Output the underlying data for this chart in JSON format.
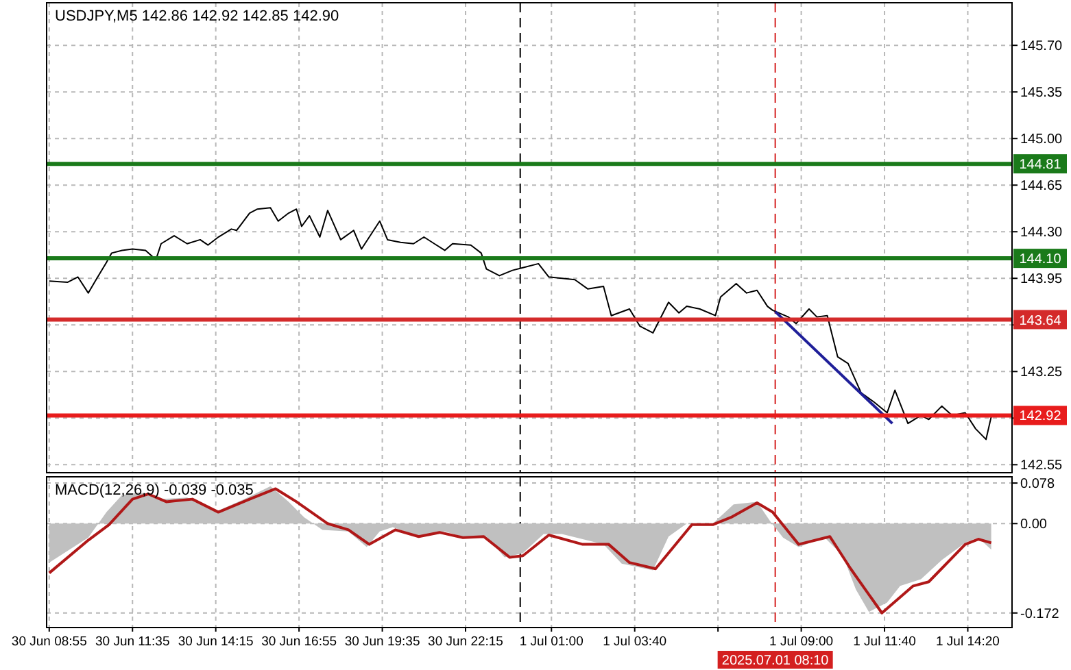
{
  "chart_data": [
    {
      "type": "line",
      "title": "USDJPY,M5 142.86 142.92 142.85 142.90",
      "xlim": [
        "2025-06-30T08:50",
        "2025-07-01T15:45"
      ],
      "xticks": [
        {
          "value": "2025-06-30T08:55",
          "label": null
        },
        {
          "value": "2025-06-30T11:35",
          "label": null
        },
        {
          "value": "2025-06-30T14:15",
          "label": null
        },
        {
          "value": "2025-06-30T16:55",
          "label": null
        },
        {
          "value": "2025-06-30T19:35",
          "label": null
        },
        {
          "value": "2025-06-30T22:15",
          "label": null
        },
        {
          "value": "2025-07-01T01:00",
          "label": null
        },
        {
          "value": "2025-07-01T03:40",
          "label": null
        },
        {
          "value": "2025-07-01T06:20",
          "label": null
        },
        {
          "value": "2025-07-01T09:00",
          "label": null
        },
        {
          "value": "2025-07-01T11:40",
          "label": null
        },
        {
          "value": "2025-07-01T14:20",
          "label": null
        }
      ],
      "ylim": [
        142.49,
        146.02
      ],
      "yticks": [
        {
          "value": 145.7,
          "label": "145.70"
        },
        145.35,
        {
          "value": 145,
          "label": "145.00"
        },
        144.65,
        {
          "value": 144.3,
          "label": "144.30"
        },
        143.95,
        {
          "value": 143.6,
          "label": null
        },
        143.25,
        {
          "value": 142.9,
          "label": null
        },
        142.55
      ],
      "tick_labels": "y",
      "grid": true,
      "series": [
        {
          "color": "#000000",
          "x": [
            "2025-06-30T08:55",
            "2025-06-30T09:30",
            "2025-06-30T09:50",
            "2025-06-30T10:10",
            "2025-06-30T10:25",
            "2025-06-30T10:45",
            "2025-06-30T10:55",
            "2025-06-30T11:15",
            "2025-06-30T11:35",
            "2025-06-30T12:00",
            "2025-06-30T12:20",
            "2025-06-30T12:30",
            "2025-06-30T12:55",
            "2025-06-30T13:20",
            "2025-06-30T13:45",
            "2025-06-30T14:00",
            "2025-06-30T14:20",
            "2025-06-30T14:45",
            "2025-06-30T14:55",
            "2025-06-30T15:20",
            "2025-06-30T15:35",
            "2025-06-30T16:00",
            "2025-06-30T16:15",
            "2025-06-30T16:35",
            "2025-06-30T16:50",
            "2025-06-30T17:00",
            "2025-06-30T17:15",
            "2025-06-30T17:35",
            "2025-06-30T17:50",
            "2025-06-30T18:15",
            "2025-06-30T18:40",
            "2025-06-30T18:55",
            "2025-06-30T19:30",
            "2025-06-30T19:45",
            "2025-06-30T20:10",
            "2025-06-30T20:35",
            "2025-06-30T20:55",
            "2025-06-30T21:15",
            "2025-06-30T21:35",
            "2025-06-30T21:50",
            "2025-06-30T22:25",
            "2025-06-30T22:45",
            "2025-06-30T22:55",
            "2025-06-30T23:20",
            "2025-06-30T23:45",
            "2025-07-01T00:05",
            "2025-07-01T00:35",
            "2025-07-01T00:55",
            "2025-07-01T01:45",
            "2025-07-01T02:10",
            "2025-07-01T02:40",
            "2025-07-01T02:55",
            "2025-07-01T03:30",
            "2025-07-01T03:50",
            "2025-07-01T04:15",
            "2025-07-01T04:45",
            "2025-07-01T05:05",
            "2025-07-01T05:20",
            "2025-07-01T05:45",
            "2025-07-01T06:15",
            "2025-07-01T06:25",
            "2025-07-01T06:55",
            "2025-07-01T07:15",
            "2025-07-01T07:35",
            "2025-07-01T07:55",
            "2025-07-01T08:05",
            "2025-07-01T08:35",
            "2025-07-01T08:50",
            "2025-07-01T09:15",
            "2025-07-01T09:30",
            "2025-07-01T09:50",
            "2025-07-01T10:10",
            "2025-07-01T10:30",
            "2025-07-01T10:55",
            "2025-07-01T11:20",
            "2025-07-01T11:45",
            "2025-07-01T12:00",
            "2025-07-01T12:25",
            "2025-07-01T12:50",
            "2025-07-01T13:05",
            "2025-07-01T13:30",
            "2025-07-01T13:50",
            "2025-07-01T14:15",
            "2025-07-01T14:35",
            "2025-07-01T14:55",
            "2025-07-01T15:05"
          ],
          "values": [
            143.93,
            143.92,
            143.96,
            143.84,
            143.94,
            144.07,
            144.14,
            144.16,
            144.17,
            144.16,
            144.09,
            144.21,
            144.27,
            144.21,
            144.24,
            144.2,
            144.26,
            144.32,
            144.31,
            144.44,
            144.47,
            144.48,
            144.38,
            144.44,
            144.47,
            144.34,
            144.42,
            144.26,
            144.46,
            144.24,
            144.31,
            144.17,
            144.38,
            144.24,
            144.22,
            144.21,
            144.26,
            144.21,
            144.16,
            144.21,
            144.2,
            144.14,
            144.02,
            143.97,
            144.01,
            144.03,
            144.06,
            143.96,
            143.94,
            143.87,
            143.89,
            143.67,
            143.72,
            143.59,
            143.54,
            143.77,
            143.69,
            143.74,
            143.72,
            143.67,
            143.81,
            143.91,
            143.84,
            143.86,
            143.74,
            143.71,
            143.66,
            143.61,
            143.72,
            143.66,
            143.67,
            143.36,
            143.31,
            143.09,
            143.02,
            142.94,
            143.11,
            142.86,
            142.92,
            142.89,
            142.99,
            142.92,
            142.94,
            142.82,
            142.74,
            142.91
          ]
        },
        {
          "color": "#1f1f99",
          "x": [
            "2025-07-01T08:10",
            "2025-07-01T11:55"
          ],
          "values": [
            143.7,
            142.86
          ]
        }
      ],
      "ref_lines": [
        {
          "axis": "y",
          "value": 144.81,
          "label": "144.81",
          "color": "#1a7a1a",
          "line_style": "solid"
        },
        {
          "axis": "y",
          "value": 144.1,
          "label": "144.10",
          "color": "#1a7a1a",
          "line_style": "solid"
        },
        {
          "axis": "y",
          "value": 143.64,
          "label": "143.64",
          "color": "#d42a2a",
          "line_style": "solid"
        },
        {
          "axis": "y",
          "value": 142.92,
          "label": "142.92",
          "color": "#e81c1c",
          "line_style": "solid"
        },
        {
          "axis": "x",
          "value": "2025-07-01T00:00",
          "color": "#000000",
          "line_style": "dashed"
        },
        {
          "axis": "x",
          "value": "2025-07-01T08:10",
          "color": "#d42020",
          "line_style": "dashed"
        }
      ]
    },
    {
      "type": "line",
      "title": "MACD(12,26,9) -0.039 -0.035",
      "xlim": [
        "2025-06-30T08:50",
        "2025-07-01T15:45"
      ],
      "xticks": [
        {
          "value": "2025-06-30T08:55",
          "label": "30 Jun 08:55"
        },
        {
          "value": "2025-06-30T11:35",
          "label": "30 Jun 11:35"
        },
        {
          "value": "2025-06-30T14:15",
          "label": "30 Jun 14:15"
        },
        {
          "value": "2025-06-30T16:55",
          "label": "30 Jun 16:55"
        },
        {
          "value": "2025-06-30T19:35",
          "label": "30 Jun 19:35"
        },
        {
          "value": "2025-06-30T22:15",
          "label": "30 Jun 22:15"
        },
        {
          "value": "2025-07-01T01:00",
          "label": "1 Jul 01:00"
        },
        {
          "value": "2025-07-01T03:40",
          "label": "1 Jul 03:40"
        },
        {
          "value": "2025-07-01T06:20",
          "label": null
        },
        {
          "value": "2025-07-01T09:00",
          "label": "1 Jul 09:00"
        },
        {
          "value": "2025-07-01T11:40",
          "label": "1 Jul 11:40"
        },
        {
          "value": "2025-07-01T14:20",
          "label": "1 Jul 14:20"
        }
      ],
      "ylim": [
        -0.2,
        0.09
      ],
      "yticks": [
        0.078,
        {
          "value": 0,
          "label": "0.00"
        },
        -0.172
      ],
      "grid": true,
      "series": [
        {
          "type": "area",
          "color": "#c0c0c0",
          "x": [
            "2025-06-30T08:55",
            "2025-06-30T10:10",
            "2025-06-30T10:45",
            "2025-06-30T11:15",
            "2025-06-30T11:50",
            "2025-06-30T12:30",
            "2025-06-30T13:20",
            "2025-06-30T14:20",
            "2025-06-30T15:10",
            "2025-06-30T16:00",
            "2025-06-30T16:35",
            "2025-06-30T17:05",
            "2025-06-30T17:40",
            "2025-06-30T18:30",
            "2025-06-30T19:05",
            "2025-06-30T19:30",
            "2025-06-30T19:55",
            "2025-06-30T20:45",
            "2025-06-30T21:35",
            "2025-06-30T22:15",
            "2025-06-30T22:55",
            "2025-06-30T23:30",
            "2025-07-01T00:05",
            "2025-07-01T00:45",
            "2025-07-01T01:20",
            "2025-07-01T02:40",
            "2025-07-01T03:15",
            "2025-07-01T04:15",
            "2025-07-01T04:45",
            "2025-07-01T05:20",
            "2025-07-01T06:10",
            "2025-07-01T06:50",
            "2025-07-01T07:35",
            "2025-07-01T08:00",
            "2025-07-01T08:25",
            "2025-07-01T08:55",
            "2025-07-01T09:45",
            "2025-07-01T10:20",
            "2025-07-01T10:45",
            "2025-07-01T11:10",
            "2025-07-01T11:45",
            "2025-07-01T12:10",
            "2025-07-01T12:50",
            "2025-07-01T13:30",
            "2025-07-01T14:15",
            "2025-07-01T14:40",
            "2025-07-01T15:05"
          ],
          "values": [
            -0.075,
            -0.027,
            0.022,
            0.055,
            0.06,
            0.047,
            0.05,
            0.025,
            0.047,
            0.072,
            0.042,
            0.012,
            -0.012,
            -0.015,
            -0.045,
            -0.015,
            -0.007,
            -0.025,
            -0.015,
            -0.027,
            -0.025,
            -0.065,
            -0.057,
            -0.02,
            -0.02,
            -0.04,
            -0.077,
            -0.09,
            -0.025,
            0,
            0,
            0.037,
            0.042,
            0.005,
            -0.027,
            -0.045,
            -0.027,
            -0.062,
            -0.127,
            -0.17,
            -0.152,
            -0.12,
            -0.107,
            -0.07,
            -0.037,
            -0.027,
            -0.05
          ]
        },
        {
          "color": "#b01818",
          "x": [
            "2025-06-30T08:55",
            "2025-06-30T10:10",
            "2025-06-30T10:50",
            "2025-06-30T11:35",
            "2025-06-30T12:05",
            "2025-06-30T12:40",
            "2025-06-30T13:30",
            "2025-06-30T14:20",
            "2025-06-30T15:20",
            "2025-06-30T16:10",
            "2025-06-30T16:50",
            "2025-06-30T17:50",
            "2025-06-30T18:30",
            "2025-06-30T19:10",
            "2025-06-30T20:00",
            "2025-06-30T20:45",
            "2025-06-30T21:25",
            "2025-06-30T22:10",
            "2025-06-30T22:50",
            "2025-06-30T23:40",
            "2025-07-01T00:05",
            "2025-07-01T00:55",
            "2025-07-01T02:00",
            "2025-07-01T02:50",
            "2025-07-01T03:30",
            "2025-07-01T04:20",
            "2025-07-01T05:30",
            "2025-07-01T06:10",
            "2025-07-01T06:45",
            "2025-07-01T07:35",
            "2025-07-01T08:05",
            "2025-07-01T08:55",
            "2025-07-01T09:55",
            "2025-07-01T10:35",
            "2025-07-01T11:35",
            "2025-07-01T12:35",
            "2025-07-01T13:05",
            "2025-07-01T14:15",
            "2025-07-01T14:40",
            "2025-07-01T15:05"
          ],
          "values": [
            -0.095,
            -0.032,
            -0.002,
            0.047,
            0.057,
            0.042,
            0.047,
            0.022,
            0.047,
            0.067,
            0.042,
            0,
            -0.012,
            -0.04,
            -0.012,
            -0.025,
            -0.017,
            -0.027,
            -0.025,
            -0.065,
            -0.062,
            -0.022,
            -0.04,
            -0.04,
            -0.075,
            -0.087,
            -0.002,
            -0.002,
            0.012,
            0.04,
            0.022,
            -0.04,
            -0.025,
            -0.087,
            -0.172,
            -0.12,
            -0.112,
            -0.04,
            -0.03,
            -0.037
          ]
        }
      ],
      "ref_lines": [
        {
          "axis": "x",
          "value": "2025-07-01T00:00",
          "color": "#000000",
          "line_style": "dashed"
        },
        {
          "axis": "x",
          "value": "2025-07-01T08:10",
          "label": "2025.07.01 08:10",
          "color": "#d42020",
          "line_style": "dashed"
        }
      ]
    }
  ]
}
